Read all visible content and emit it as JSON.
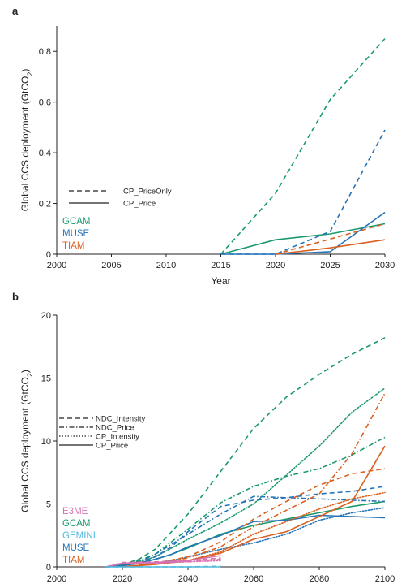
{
  "chart_data": [
    {
      "panel": "a",
      "type": "line",
      "xlabel": "Year",
      "ylabel": "Global CCS deployment (GtCO2)",
      "xlim": [
        2000,
        2030
      ],
      "ylim": [
        0,
        0.9
      ],
      "xticks": [
        2000,
        2005,
        2010,
        2015,
        2020,
        2025,
        2030
      ],
      "yticks": [
        0,
        0.2,
        0.4,
        0.6,
        0.8
      ],
      "grid": false,
      "scenario_legend": [
        {
          "label": "CP_PriceOnly",
          "style": "dashed"
        },
        {
          "label": "CP_Price",
          "style": "solid"
        }
      ],
      "model_legend": [
        {
          "label": "GCAM",
          "color": "#1a9a6c"
        },
        {
          "label": "MUSE",
          "color": "#2474b8"
        },
        {
          "label": "TIAM",
          "color": "#d9601f"
        }
      ],
      "series": [
        {
          "model": "GCAM",
          "scenario": "CP_PriceOnly",
          "color": "#1a9a6c",
          "style": "dashed",
          "x": [
            2015,
            2020,
            2025,
            2030
          ],
          "y": [
            0,
            0.24,
            0.61,
            0.85
          ]
        },
        {
          "model": "GCAM",
          "scenario": "CP_Price",
          "color": "#1a9a6c",
          "style": "solid",
          "x": [
            2015,
            2020,
            2025,
            2030
          ],
          "y": [
            0,
            0.057,
            0.08,
            0.12
          ]
        },
        {
          "model": "MUSE",
          "scenario": "CP_PriceOnly",
          "color": "#2474b8",
          "style": "dashed",
          "x": [
            2015,
            2020,
            2025,
            2030
          ],
          "y": [
            0,
            0,
            0.09,
            0.49
          ]
        },
        {
          "model": "MUSE",
          "scenario": "CP_Price",
          "color": "#2474b8",
          "style": "solid",
          "x": [
            2015,
            2020,
            2025,
            2030
          ],
          "y": [
            0,
            0,
            0.01,
            0.165
          ]
        },
        {
          "model": "TIAM",
          "scenario": "CP_PriceOnly",
          "color": "#d9601f",
          "style": "dashed",
          "x": [
            2020,
            2025,
            2030
          ],
          "y": [
            0,
            0.06,
            0.12
          ]
        },
        {
          "model": "TIAM",
          "scenario": "CP_Price",
          "color": "#d9601f",
          "style": "solid",
          "x": [
            2020,
            2025,
            2030
          ],
          "y": [
            0,
            0.025,
            0.057
          ]
        }
      ]
    },
    {
      "panel": "b",
      "type": "line",
      "xlabel": "Year",
      "ylabel": "Global CCS deployment (GtCO2)",
      "xlim": [
        2000,
        2100
      ],
      "ylim": [
        0,
        20
      ],
      "xticks": [
        2000,
        2020,
        2040,
        2060,
        2080,
        2100
      ],
      "yticks": [
        0,
        5,
        10,
        15,
        20
      ],
      "grid": false,
      "scenario_legend": [
        {
          "label": "NDC_Intensity",
          "style": "dashed"
        },
        {
          "label": "NDC_Price",
          "style": "dashdot"
        },
        {
          "label": "CP_Intensity",
          "style": "dotted"
        },
        {
          "label": "CP_Price",
          "style": "solid"
        }
      ],
      "model_legend": [
        {
          "label": "E3ME",
          "color": "#d873b1"
        },
        {
          "label": "GCAM",
          "color": "#1a9a6c"
        },
        {
          "label": "GEMINI",
          "color": "#4fb8dc"
        },
        {
          "label": "MUSE",
          "color": "#2474b8"
        },
        {
          "label": "TIAM",
          "color": "#d9601f"
        }
      ],
      "series": [
        {
          "model": "GCAM",
          "scenario": "NDC_Intensity",
          "color": "#1a9a6c",
          "style": "dashed",
          "x": [
            2015,
            2020,
            2025,
            2030,
            2035,
            2040,
            2050,
            2060,
            2070,
            2080,
            2090,
            2100
          ],
          "y": [
            0,
            0.2,
            0.6,
            1.4,
            2.8,
            4.2,
            7.6,
            11.0,
            13.5,
            15.3,
            16.9,
            18.2
          ]
        },
        {
          "model": "GCAM",
          "scenario": "NDC_Price",
          "color": "#1a9a6c",
          "style": "dashdot",
          "x": [
            2015,
            2020,
            2025,
            2030,
            2035,
            2040,
            2050,
            2060,
            2070,
            2080,
            2090,
            2100
          ],
          "y": [
            0,
            0.2,
            0.5,
            1.0,
            2.0,
            3.0,
            5.1,
            6.4,
            7.2,
            7.8,
            8.9,
            10.3
          ]
        },
        {
          "model": "GCAM",
          "scenario": "CP_Intensity",
          "color": "#1a9a6c",
          "style": "dotted",
          "x": [
            2015,
            2020,
            2025,
            2030,
            2035,
            2040,
            2050,
            2060,
            2070,
            2080,
            2090,
            2100
          ],
          "y": [
            0,
            0.2,
            0.4,
            0.8,
            1.5,
            2.2,
            3.5,
            5.0,
            7.3,
            9.6,
            12.3,
            14.2
          ]
        },
        {
          "model": "GCAM",
          "scenario": "CP_Price",
          "color": "#1a9a6c",
          "style": "solid",
          "x": [
            2015,
            2020,
            2025,
            2030,
            2035,
            2040,
            2050,
            2060,
            2070,
            2080,
            2090,
            2100
          ],
          "y": [
            0,
            0.15,
            0.3,
            0.6,
            1.0,
            1.5,
            2.6,
            3.3,
            3.8,
            4.3,
            4.8,
            5.2
          ]
        },
        {
          "model": "MUSE",
          "scenario": "NDC_Intensity",
          "color": "#2474b8",
          "style": "dashed",
          "x": [
            2015,
            2020,
            2025,
            2030,
            2035,
            2040,
            2050,
            2060,
            2070,
            2080,
            2090,
            2100
          ],
          "y": [
            0,
            0.1,
            0.3,
            0.8,
            1.6,
            2.8,
            4.8,
            5.3,
            5.5,
            5.8,
            6.0,
            6.4
          ]
        },
        {
          "model": "MUSE",
          "scenario": "NDC_Price",
          "color": "#2474b8",
          "style": "dashdot",
          "x": [
            2015,
            2020,
            2025,
            2030,
            2035,
            2040,
            2050,
            2060,
            2070,
            2080,
            2090,
            2100
          ],
          "y": [
            0,
            0.1,
            0.4,
            1.0,
            1.8,
            2.6,
            4.2,
            5.6,
            5.5,
            5.4,
            5.3,
            5.2
          ]
        },
        {
          "model": "MUSE",
          "scenario": "CP_Intensity",
          "color": "#2474b8",
          "style": "dotted",
          "x": [
            2015,
            2020,
            2025,
            2030,
            2035,
            2040,
            2050,
            2060,
            2070,
            2080,
            2090,
            2100
          ],
          "y": [
            0,
            0.05,
            0.1,
            0.3,
            0.5,
            0.8,
            1.4,
            1.9,
            2.6,
            3.7,
            4.3,
            4.7
          ]
        },
        {
          "model": "MUSE",
          "scenario": "CP_Price",
          "color": "#2474b8",
          "style": "solid",
          "x": [
            2015,
            2020,
            2025,
            2030,
            2035,
            2040,
            2050,
            2060,
            2070,
            2080,
            2090,
            2100
          ],
          "y": [
            0,
            0.1,
            0.3,
            0.6,
            1.0,
            1.6,
            2.5,
            3.6,
            3.7,
            4.1,
            4.0,
            3.9
          ]
        },
        {
          "model": "TIAM",
          "scenario": "NDC_Intensity",
          "color": "#d9601f",
          "style": "dashed",
          "x": [
            2020,
            2030,
            2040,
            2050,
            2060,
            2070,
            2080,
            2090,
            2100
          ],
          "y": [
            0,
            0.3,
            0.8,
            2.0,
            3.8,
            5.2,
            6.5,
            7.4,
            7.8
          ]
        },
        {
          "model": "TIAM",
          "scenario": "NDC_Price",
          "color": "#d9601f",
          "style": "dashdot",
          "x": [
            2020,
            2030,
            2040,
            2050,
            2060,
            2070,
            2080,
            2090,
            2100
          ],
          "y": [
            0,
            0.25,
            0.7,
            1.6,
            3.2,
            4.5,
            5.8,
            9.0,
            13.8
          ]
        },
        {
          "model": "TIAM",
          "scenario": "CP_Intensity",
          "color": "#d9601f",
          "style": "dotted",
          "x": [
            2020,
            2030,
            2040,
            2050,
            2060,
            2070,
            2080,
            2090,
            2100
          ],
          "y": [
            0,
            0.2,
            0.5,
            1.2,
            2.6,
            3.6,
            4.6,
            5.4,
            5.9
          ]
        },
        {
          "model": "TIAM",
          "scenario": "CP_Price",
          "color": "#d9601f",
          "style": "solid",
          "x": [
            2020,
            2030,
            2040,
            2050,
            2060,
            2070,
            2080,
            2090,
            2100
          ],
          "y": [
            0,
            0.2,
            0.5,
            1.1,
            2.2,
            2.8,
            4.0,
            5.2,
            9.6
          ]
        },
        {
          "model": "E3ME",
          "scenario": "NDC_Intensity",
          "color": "#d873b1",
          "style": "dashed",
          "x": [
            2015,
            2020,
            2030,
            2040,
            2050
          ],
          "y": [
            0,
            0.35,
            0.4,
            0.5,
            0.7
          ]
        },
        {
          "model": "E3ME",
          "scenario": "NDC_Price",
          "color": "#d873b1",
          "style": "dashdot",
          "x": [
            2015,
            2020,
            2030,
            2040,
            2050
          ],
          "y": [
            0,
            0.3,
            0.35,
            0.45,
            0.6
          ]
        },
        {
          "model": "E3ME",
          "scenario": "CP_Intensity",
          "color": "#d873b1",
          "style": "dotted",
          "x": [
            2015,
            2020,
            2030,
            2040,
            2050
          ],
          "y": [
            0,
            0.25,
            0.3,
            0.4,
            0.5
          ]
        },
        {
          "model": "E3ME",
          "scenario": "CP_Price",
          "color": "#d873b1",
          "style": "solid",
          "x": [
            2015,
            2020,
            2030,
            2040,
            2050
          ],
          "y": [
            0,
            0.3,
            0.35,
            0.5,
            0.9
          ]
        },
        {
          "model": "GEMINI",
          "scenario": "NDC_Intensity",
          "color": "#4fb8dc",
          "style": "dashed",
          "x": [
            2015,
            2020,
            2030,
            2040,
            2050
          ],
          "y": [
            0,
            0,
            0,
            0,
            0.05
          ]
        },
        {
          "model": "GEMINI",
          "scenario": "CP_Price",
          "color": "#4fb8dc",
          "style": "solid",
          "x": [
            2015,
            2020,
            2030,
            2040,
            2050
          ],
          "y": [
            0,
            0,
            0,
            0,
            0
          ]
        }
      ]
    }
  ]
}
